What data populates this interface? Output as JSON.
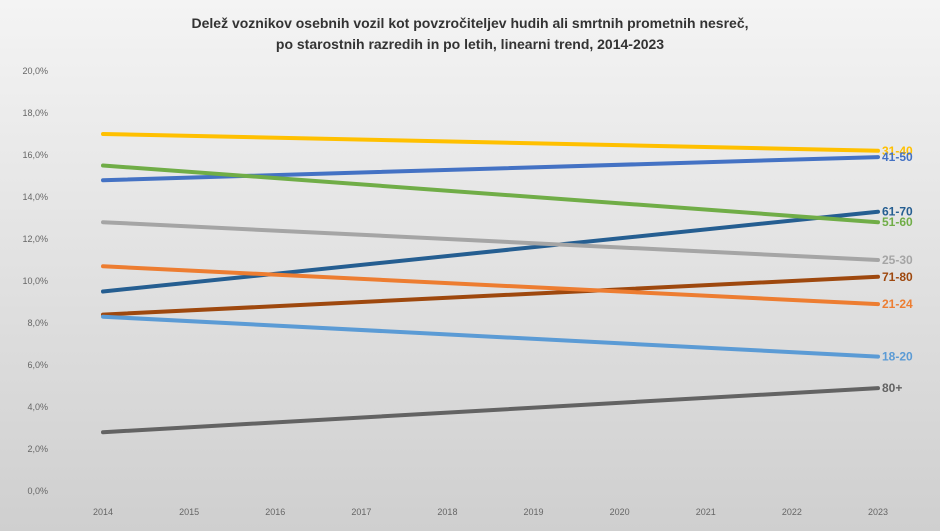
{
  "chart_data": {
    "type": "line",
    "title": "Delež voznikov osebnih vozil kot povzročiteljev hudih ali smrtnih prometnih nesreč,",
    "subtitle": "po starostnih razredih in po letih, linearni trend, 2014-2023",
    "x": [
      "2014",
      "2015",
      "2016",
      "2017",
      "2018",
      "2019",
      "2020",
      "2021",
      "2022",
      "2023"
    ],
    "y_ticks": [
      "0,0%",
      "2,0%",
      "4,0%",
      "6,0%",
      "8,0%",
      "10,0%",
      "12,0%",
      "14,0%",
      "16,0%",
      "18,0%",
      "20,0%"
    ],
    "ylim": [
      0,
      20
    ],
    "grid": false,
    "legend": "direct labels at line ends",
    "series": [
      {
        "name": "31-40",
        "color": "#ffc000",
        "start": 17.0,
        "end": 16.2
      },
      {
        "name": "41-50",
        "color": "#4472c4",
        "start": 14.8,
        "end": 15.9
      },
      {
        "name": "61-70",
        "color": "#255e91",
        "start": 9.5,
        "end": 13.3
      },
      {
        "name": "51-60",
        "color": "#70ad47",
        "start": 15.5,
        "end": 12.8
      },
      {
        "name": "25-30",
        "color": "#a5a5a5",
        "start": 12.8,
        "end": 11.0
      },
      {
        "name": "71-80",
        "color": "#9e480e",
        "start": 8.4,
        "end": 10.2
      },
      {
        "name": "21-24",
        "color": "#ed7d31",
        "start": 10.7,
        "end": 8.9
      },
      {
        "name": "18-20",
        "color": "#5b9bd5",
        "start": 8.3,
        "end": 6.4
      },
      {
        "name": "80+",
        "color": "#636363",
        "start": 2.8,
        "end": 4.9
      }
    ]
  }
}
